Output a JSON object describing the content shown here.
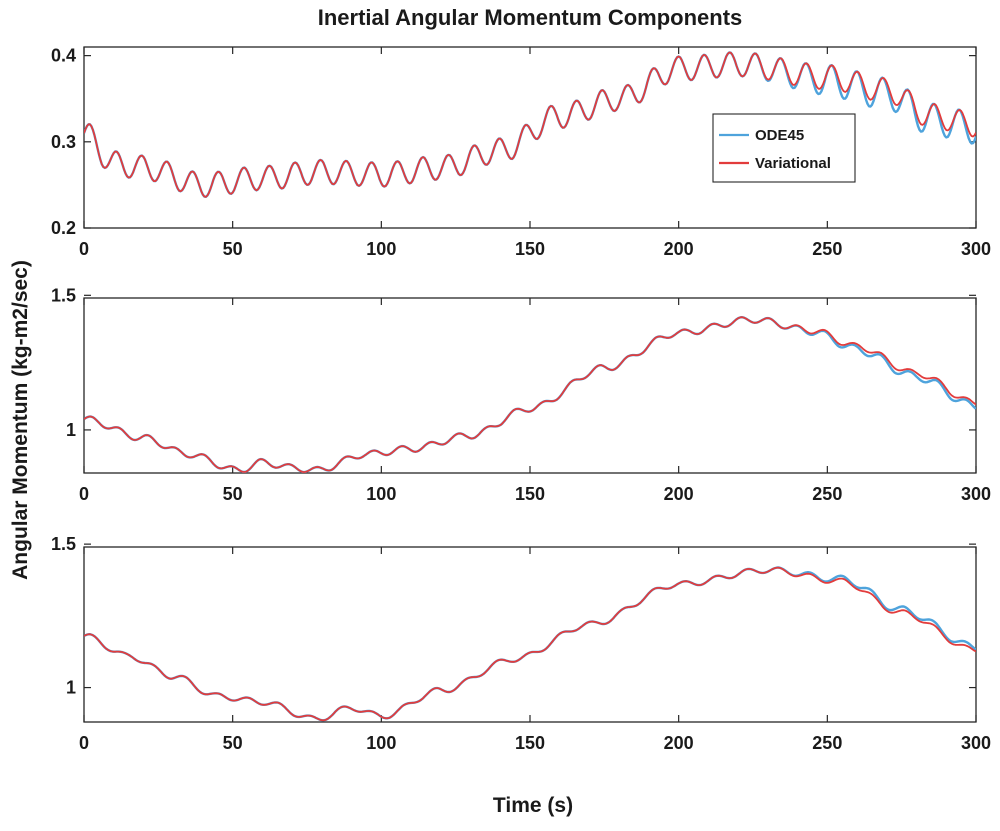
{
  "chart_data": {
    "type": "line",
    "title": "Inertial Angular Momentum Components",
    "xlabel": "Time (s)",
    "ylabel": "Angular Momentum (kg-m2/sec)",
    "legend": {
      "placement": "right",
      "entries": [
        "ODE45",
        "Variational"
      ]
    },
    "colors": {
      "ODE45": "#4ea3dc",
      "Variational": "#e23c3c"
    },
    "subplots": [
      {
        "xlim": [
          0,
          300
        ],
        "ylim": [
          0.2,
          0.41
        ],
        "xticks": [
          "0",
          "50",
          "100",
          "150",
          "200",
          "250",
          "300"
        ],
        "yticks": [
          "0.2",
          "0.3",
          "0.4"
        ],
        "ytick_values": [
          0.2,
          0.3,
          0.4
        ],
        "baseline": [
          [
            0,
            0.31
          ],
          [
            10,
            0.275
          ],
          [
            20,
            0.27
          ],
          [
            40,
            0.25
          ],
          [
            60,
            0.258
          ],
          [
            80,
            0.265
          ],
          [
            100,
            0.262
          ],
          [
            120,
            0.27
          ],
          [
            140,
            0.29
          ],
          [
            160,
            0.33
          ],
          [
            180,
            0.35
          ],
          [
            200,
            0.385
          ],
          [
            220,
            0.39
          ],
          [
            250,
            0.375
          ],
          [
            270,
            0.36
          ],
          [
            285,
            0.33
          ],
          [
            300,
            0.32
          ]
        ],
        "osc_amp": 0.014,
        "osc_period": 8.6,
        "ode_offset": -0.004,
        "ode_drift_start": 225,
        "legend_visible": true
      },
      {
        "xlim": [
          0,
          300
        ],
        "ylim": [
          0.84,
          1.49
        ],
        "xticks": [
          "0",
          "50",
          "100",
          "150",
          "200",
          "250",
          "300"
        ],
        "yticks": [
          "1",
          "1.5"
        ],
        "ytick_values": [
          1.0,
          1.5
        ],
        "baseline": [
          [
            0,
            1.04
          ],
          [
            20,
            0.97
          ],
          [
            35,
            0.91
          ],
          [
            52,
            0.85
          ],
          [
            60,
            0.88
          ],
          [
            70,
            0.86
          ],
          [
            78,
            0.85
          ],
          [
            95,
            0.91
          ],
          [
            110,
            0.93
          ],
          [
            130,
            0.98
          ],
          [
            150,
            1.08
          ],
          [
            175,
            1.23
          ],
          [
            200,
            1.36
          ],
          [
            225,
            1.41
          ],
          [
            245,
            1.37
          ],
          [
            260,
            1.31
          ],
          [
            280,
            1.21
          ],
          [
            300,
            1.1
          ]
        ],
        "osc_amp": 0.012,
        "osc_period": 9.5,
        "ode_offset": -0.012,
        "ode_drift_start": 235,
        "legend_visible": false
      },
      {
        "xlim": [
          0,
          300
        ],
        "ylim": [
          0.88,
          1.49
        ],
        "xticks": [
          "0",
          "50",
          "100",
          "150",
          "200",
          "250",
          "300"
        ],
        "yticks": [
          "1",
          "1.5"
        ],
        "ytick_values": [
          1.0,
          1.5
        ],
        "baseline": [
          [
            0,
            1.18
          ],
          [
            15,
            1.11
          ],
          [
            30,
            1.04
          ],
          [
            45,
            0.97
          ],
          [
            60,
            0.95
          ],
          [
            78,
            0.89
          ],
          [
            90,
            0.93
          ],
          [
            100,
            0.9
          ],
          [
            120,
            0.99
          ],
          [
            145,
            1.1
          ],
          [
            170,
            1.22
          ],
          [
            200,
            1.36
          ],
          [
            230,
            1.41
          ],
          [
            255,
            1.37
          ],
          [
            275,
            1.26
          ],
          [
            300,
            1.13
          ]
        ],
        "osc_amp": 0.01,
        "osc_period": 10.5,
        "ode_offset": 0.01,
        "ode_drift_start": 232,
        "legend_visible": false
      }
    ]
  }
}
